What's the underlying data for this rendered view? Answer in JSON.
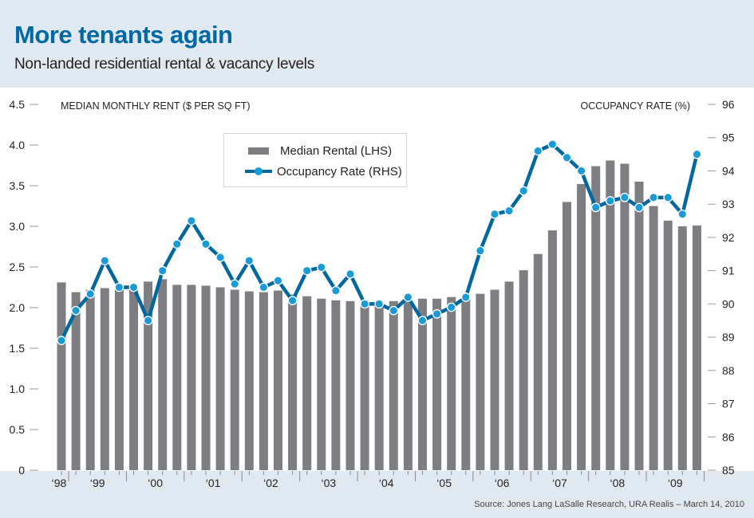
{
  "header": {
    "title": "More tenants again",
    "subtitle": "Non-landed residential rental & vacancy levels"
  },
  "source": "Source: Jones Lang LaSalle Research, URA Realis – March 14, 2010",
  "colors": {
    "title": "#0068a5",
    "background": "#e1e9f0",
    "bar": "#7d7e82",
    "line": "#00689e",
    "marker": "#1a9ad6"
  },
  "chart_data": {
    "type": "bar",
    "title": "More tenants again",
    "subtitle": "Non-landed residential rental & vacancy levels",
    "xlabel": "",
    "ylabel": "MEDIAN MONTHLY RENT ($ PER SQ FT)",
    "y2label": "OCCUPANCY RATE (%)",
    "ylim": [
      0,
      4.5
    ],
    "y2lim": [
      85,
      96
    ],
    "yticks": [
      "0",
      "0.5",
      "1.0",
      "1.5",
      "2.0",
      "2.5",
      "3.0",
      "3.5",
      "4.0",
      "4.5"
    ],
    "y2ticks": [
      "85",
      "86",
      "87",
      "88",
      "89",
      "90",
      "91",
      "92",
      "93",
      "94",
      "95",
      "96"
    ],
    "xtick_labels": [
      "‘98",
      "‘99",
      "‘00",
      "‘01",
      "‘02",
      "‘03",
      "‘04",
      "‘05",
      "‘06",
      "‘07",
      "‘08",
      "‘09"
    ],
    "x_frequency": "quarterly, Q4 1998 – Q4 2009",
    "grid": false,
    "legend": {
      "position": "top-center",
      "entries": [
        "Median Rental (LHS)",
        "Occupancy Rate (RHS)"
      ]
    },
    "categories": [
      "1998Q4",
      "1999Q1",
      "1999Q2",
      "1999Q3",
      "1999Q4",
      "2000Q1",
      "2000Q2",
      "2000Q3",
      "2000Q4",
      "2001Q1",
      "2001Q2",
      "2001Q3",
      "2001Q4",
      "2002Q1",
      "2002Q2",
      "2002Q3",
      "2002Q4",
      "2003Q1",
      "2003Q2",
      "2003Q3",
      "2003Q4",
      "2004Q1",
      "2004Q2",
      "2004Q3",
      "2004Q4",
      "2005Q1",
      "2005Q2",
      "2005Q3",
      "2005Q4",
      "2006Q1",
      "2006Q2",
      "2006Q3",
      "2006Q4",
      "2007Q1",
      "2007Q2",
      "2007Q3",
      "2007Q4",
      "2008Q1",
      "2008Q2",
      "2008Q3",
      "2008Q4",
      "2009Q1",
      "2009Q2",
      "2009Q3",
      "2009Q4"
    ],
    "series": [
      {
        "name": "Median Rental (LHS)",
        "type": "bar",
        "axis": "left",
        "values": [
          2.31,
          2.19,
          2.22,
          2.24,
          2.25,
          2.25,
          2.32,
          2.35,
          2.28,
          2.28,
          2.27,
          2.25,
          2.22,
          2.2,
          2.19,
          2.21,
          2.16,
          2.14,
          2.11,
          2.09,
          2.08,
          2.05,
          2.06,
          2.08,
          2.08,
          2.11,
          2.11,
          2.13,
          2.13,
          2.17,
          2.22,
          2.32,
          2.46,
          2.66,
          2.95,
          3.3,
          3.52,
          3.74,
          3.81,
          3.77,
          3.55,
          3.25,
          3.07,
          3.0,
          3.01
        ]
      },
      {
        "name": "Occupancy Rate (RHS)",
        "type": "line",
        "axis": "right",
        "values": [
          88.9,
          89.8,
          90.3,
          91.3,
          90.5,
          90.5,
          89.5,
          91.0,
          91.8,
          92.5,
          91.8,
          91.4,
          90.6,
          91.3,
          90.5,
          90.7,
          90.1,
          91.0,
          91.1,
          90.4,
          90.9,
          90.0,
          90.0,
          89.8,
          90.2,
          89.5,
          89.7,
          89.9,
          90.2,
          91.6,
          92.7,
          92.8,
          93.4,
          94.6,
          94.8,
          94.4,
          94.0,
          92.9,
          93.1,
          93.2,
          92.9,
          93.2,
          93.2,
          92.7,
          94.5
        ]
      }
    ]
  }
}
